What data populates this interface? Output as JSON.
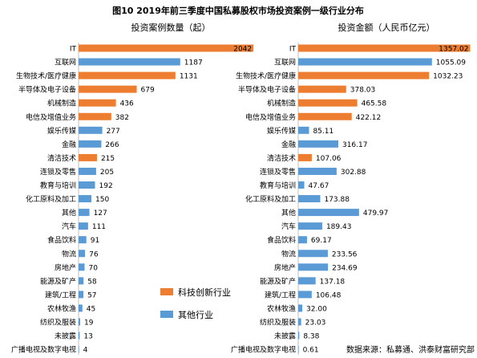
{
  "figure": {
    "title": "图10  2019年前三季度中国私募股权市场投资案例一级行业分布",
    "source": "数据来源：私募通、洪泰财富研究部"
  },
  "legend": {
    "items": [
      {
        "label": "科技创新行业",
        "color": "#ED7D31"
      },
      {
        "label": "其他行业",
        "color": "#5B9BD5"
      }
    ]
  },
  "chart_data": [
    {
      "type": "bar",
      "orientation": "horizontal",
      "title": "投资案例数量（起）",
      "categories": [
        "IT",
        "互联网",
        "生物技术/医疗健康",
        "半导体及电子设备",
        "机械制造",
        "电信及增值业务",
        "娱乐传媒",
        "金融",
        "清洁技术",
        "连锁及零售",
        "教育与培训",
        "化工原料及加工",
        "其他",
        "汽车",
        "食品饮料",
        "物流",
        "房地产",
        "能源及矿产",
        "建筑/工程",
        "农林牧渔",
        "纺织及服装",
        "未披露",
        "广播电视及数字电视"
      ],
      "values": [
        2042,
        1187,
        1131,
        679,
        436,
        382,
        277,
        266,
        215,
        205,
        192,
        150,
        127,
        111,
        91,
        76,
        70,
        58,
        57,
        45,
        19,
        13,
        4
      ],
      "value_labels": [
        "2042",
        "1187",
        "1131",
        "679",
        "436",
        "382",
        "277",
        "266",
        "215",
        "205",
        "192",
        "150",
        "127",
        "111",
        "91",
        "76",
        "70",
        "58",
        "57",
        "45",
        "19",
        "13",
        "4"
      ],
      "xlim": [
        0,
        2050
      ],
      "grid": false
    },
    {
      "type": "bar",
      "orientation": "horizontal",
      "title": "投资金额（人民币亿元）",
      "categories": [
        "IT",
        "互联网",
        "生物技术/医疗健康",
        "半导体及电子设备",
        "机械制造",
        "电信及增值业务",
        "娱乐传媒",
        "金融",
        "清洁技术",
        "连锁及零售",
        "教育与培训",
        "化工原料及加工",
        "其他",
        "汽车",
        "食品饮料",
        "物流",
        "房地产",
        "能源及矿产",
        "建筑/工程",
        "农林牧渔",
        "纺织及服装",
        "未披露",
        "广播电视及数字电视"
      ],
      "values": [
        1357.02,
        1055.09,
        1032.23,
        378.03,
        465.58,
        422.12,
        85.11,
        316.17,
        107.06,
        302.88,
        47.67,
        173.88,
        479.97,
        189.43,
        69.17,
        233.56,
        234.69,
        137.18,
        106.48,
        32.0,
        23.03,
        8.38,
        0.61
      ],
      "value_labels": [
        "1357.02",
        "1055.09",
        "1032.23",
        "378.03",
        "465.58",
        "422.12",
        "85.11",
        "316.17",
        "107.06",
        "302.88",
        "47.67",
        "173.88",
        "479.97",
        "189.43",
        "69.17",
        "233.56",
        "234.69",
        "137.18",
        "106.48",
        "32.00",
        "23.03",
        "8.38",
        "0.61"
      ],
      "xlim": [
        0,
        1360
      ],
      "grid": false
    }
  ],
  "category_group": [
    "tech",
    "other",
    "tech",
    "tech",
    "tech",
    "tech",
    "other",
    "other",
    "tech",
    "other",
    "other",
    "other",
    "other",
    "other",
    "other",
    "other",
    "other",
    "other",
    "other",
    "other",
    "other",
    "other",
    "other"
  ]
}
